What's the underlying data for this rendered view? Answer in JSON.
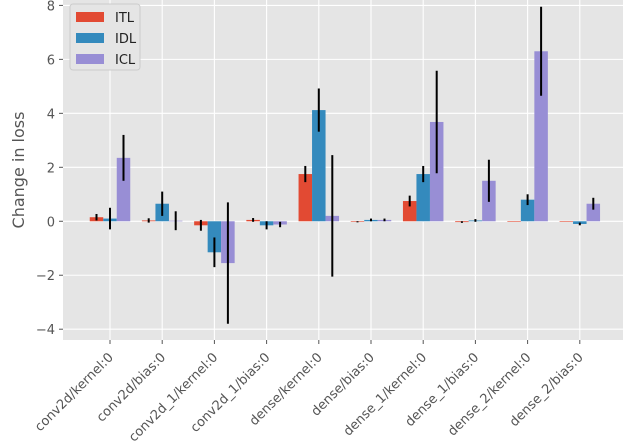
{
  "chart_data": {
    "type": "bar",
    "title": "",
    "xlabel": "",
    "ylabel": "Change in loss",
    "ylim": [
      -4.4,
      8.2
    ],
    "yticks": [
      -4,
      -2,
      0,
      2,
      4,
      6,
      8
    ],
    "ytick_labels": [
      "−4",
      "−2",
      "0",
      "2",
      "4",
      "6",
      "8"
    ],
    "grid": true,
    "legend_position": "top-left",
    "categories": [
      "conv2d/kernel:0",
      "conv2d/bias:0",
      "conv2d_1/kernel:0",
      "conv2d_1/bias:0",
      "dense/kernel:0",
      "dense/bias:0",
      "dense_1/kernel:0",
      "dense_1/bias:0",
      "dense_2/kernel:0",
      "dense_2/bias:0"
    ],
    "series": [
      {
        "name": "ITL",
        "color": "#e24a33",
        "values": [
          0.15,
          0.03,
          -0.15,
          0.05,
          1.75,
          -0.02,
          0.75,
          -0.03,
          0.0,
          0.0
        ],
        "errors": [
          0.12,
          0.08,
          0.2,
          0.07,
          0.3,
          0.02,
          0.2,
          0.03,
          0.0,
          0.0
        ]
      },
      {
        "name": "IDL",
        "color": "#348abd",
        "values": [
          0.1,
          0.65,
          -1.15,
          -0.15,
          4.12,
          0.05,
          1.75,
          0.03,
          0.8,
          -0.1
        ],
        "errors": [
          0.4,
          0.45,
          0.55,
          0.15,
          0.8,
          0.05,
          0.3,
          0.05,
          0.2,
          0.05
        ]
      },
      {
        "name": "ICL",
        "color": "#988ed5",
        "values": [
          2.35,
          0.02,
          -1.55,
          -0.12,
          0.2,
          0.05,
          3.68,
          1.5,
          6.3,
          0.65
        ],
        "errors": [
          0.85,
          0.35,
          2.25,
          0.1,
          2.25,
          0.05,
          1.9,
          0.78,
          1.65,
          0.22
        ]
      }
    ]
  }
}
